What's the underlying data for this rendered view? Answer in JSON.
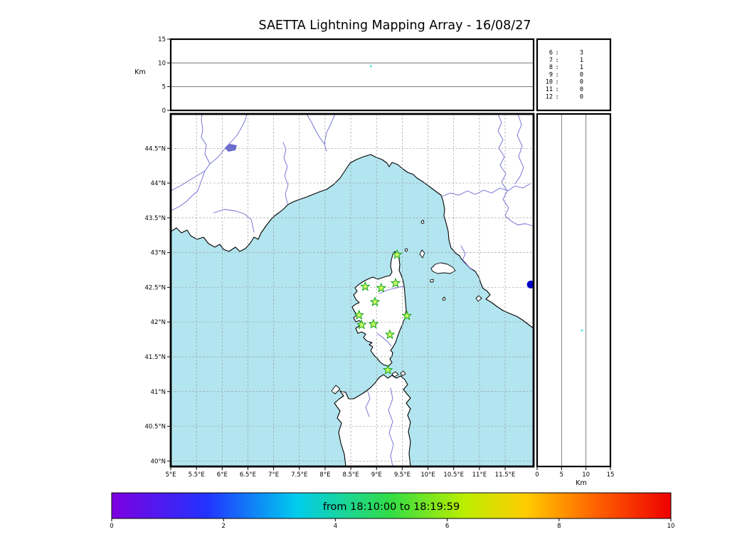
{
  "title": "SAETTA Lightning Mapping Array - 16/08/27",
  "colors": {
    "sea": "#b2e5ef",
    "land": "#ffffff",
    "coast": "#000000",
    "river": "#6a6ad0",
    "grid": "#999999",
    "station_fill": "#ccff66",
    "station_edge": "#22aa22",
    "alert_red": "#cc0000",
    "source_blue": "#0000cc",
    "source_cyan": "#5fe8e0"
  },
  "chart_data": {
    "type": "scatter",
    "title": "SAETTA Lightning Mapping Array - 16/08/27",
    "time_window": "from 18:10:00 to 18:19:59",
    "map": {
      "xlim": [
        5,
        12.05
      ],
      "ylim": [
        39.92,
        45.0
      ],
      "lon_ticks": [
        {
          "v": 5,
          "label": "5°E"
        },
        {
          "v": 5.5,
          "label": "5.5°E"
        },
        {
          "v": 6,
          "label": "6°E"
        },
        {
          "v": 6.5,
          "label": "6.5°E"
        },
        {
          "v": 7,
          "label": "7°E"
        },
        {
          "v": 7.5,
          "label": "7.5°E"
        },
        {
          "v": 8,
          "label": "8°E"
        },
        {
          "v": 8.5,
          "label": "8.5°E"
        },
        {
          "v": 9,
          "label": "9°E"
        },
        {
          "v": 9.5,
          "label": "9.5°E"
        },
        {
          "v": 10,
          "label": "10°E"
        },
        {
          "v": 10.5,
          "label": "10.5°E"
        },
        {
          "v": 11,
          "label": "11°E"
        },
        {
          "v": 11.5,
          "label": "11.5°E"
        }
      ],
      "lat_ticks": [
        {
          "v": 44.5,
          "label": "44.5°N"
        },
        {
          "v": 44,
          "label": "44°N"
        },
        {
          "v": 43.5,
          "label": "43.5°N"
        },
        {
          "v": 43,
          "label": "43°N"
        },
        {
          "v": 42.5,
          "label": "42.5°N"
        },
        {
          "v": 42,
          "label": "42°N"
        },
        {
          "v": 41.5,
          "label": "41.5°N"
        },
        {
          "v": 41,
          "label": "41°N"
        },
        {
          "v": 40.5,
          "label": "40.5°N"
        },
        {
          "v": 40,
          "label": "40°N"
        }
      ]
    },
    "altitude_panel": {
      "ylabel": "Km",
      "ylim": [
        0,
        15
      ],
      "ticks": [
        {
          "v": 0,
          "label": "0"
        },
        {
          "v": 5,
          "label": "5"
        },
        {
          "v": 10,
          "label": "10"
        },
        {
          "v": 15,
          "label": "15"
        }
      ]
    },
    "right_panel": {
      "xlabel": "Km",
      "xlim": [
        0,
        15
      ],
      "ticks": [
        {
          "v": 0,
          "label": "0"
        },
        {
          "v": 5,
          "label": "5"
        },
        {
          "v": 10,
          "label": "10"
        },
        {
          "v": 15,
          "label": "15"
        }
      ]
    },
    "station_count_histogram": [
      {
        "alt": "6",
        "sep": ":",
        "count": "3",
        "highlight": false
      },
      {
        "alt": "7",
        "sep": ":",
        "count": "1",
        "highlight": true
      },
      {
        "alt": "8",
        "sep": ":",
        "count": "1",
        "highlight": false
      },
      {
        "alt": "9",
        "sep": ":",
        "count": "0",
        "highlight": false
      },
      {
        "alt": "10",
        "sep": ":",
        "count": "0",
        "highlight": false
      },
      {
        "alt": "11",
        "sep": ":",
        "count": "0",
        "highlight": false
      },
      {
        "alt": "12",
        "sep": ":",
        "count": "0",
        "highlight": false
      }
    ],
    "stations_lonlat": [
      [
        9.4,
        42.97
      ],
      [
        8.78,
        42.51
      ],
      [
        9.09,
        42.49
      ],
      [
        9.37,
        42.56
      ],
      [
        8.97,
        42.29
      ],
      [
        8.66,
        42.1
      ],
      [
        9.59,
        42.09
      ],
      [
        8.71,
        41.96
      ],
      [
        8.94,
        41.97
      ],
      [
        9.26,
        41.82
      ],
      [
        9.22,
        41.31
      ]
    ],
    "sources": [
      {
        "panel": "map",
        "lon": 12.0,
        "lat": 42.54,
        "color": "#0000cc",
        "r": 5.5
      },
      {
        "panel": "altitude",
        "lon": 8.89,
        "alt_km": 9.3,
        "color": "#5fe8e0",
        "r": 1.6
      },
      {
        "panel": "right",
        "alt_km": 9.17,
        "lat": 41.88,
        "color": "#5fe8e0",
        "r": 1.6
      }
    ],
    "colorbar": {
      "label": "from 18:10:00 to 18:19:59",
      "min": 0,
      "max": 10,
      "ticks": [
        {
          "v": 0,
          "label": "0"
        },
        {
          "v": 2,
          "label": "2"
        },
        {
          "v": 4,
          "label": "4"
        },
        {
          "v": 6,
          "label": "6"
        },
        {
          "v": 8,
          "label": "8"
        },
        {
          "v": 10,
          "label": "10"
        }
      ],
      "gradient": [
        {
          "o": 0,
          "c": "#7d00e0"
        },
        {
          "o": 0.17,
          "c": "#2233ff"
        },
        {
          "o": 0.33,
          "c": "#00ccee"
        },
        {
          "o": 0.5,
          "c": "#33dd44"
        },
        {
          "o": 0.63,
          "c": "#bbee00"
        },
        {
          "o": 0.74,
          "c": "#ffcc00"
        },
        {
          "o": 0.86,
          "c": "#ff6600"
        },
        {
          "o": 1,
          "c": "#ee0000"
        }
      ]
    }
  }
}
